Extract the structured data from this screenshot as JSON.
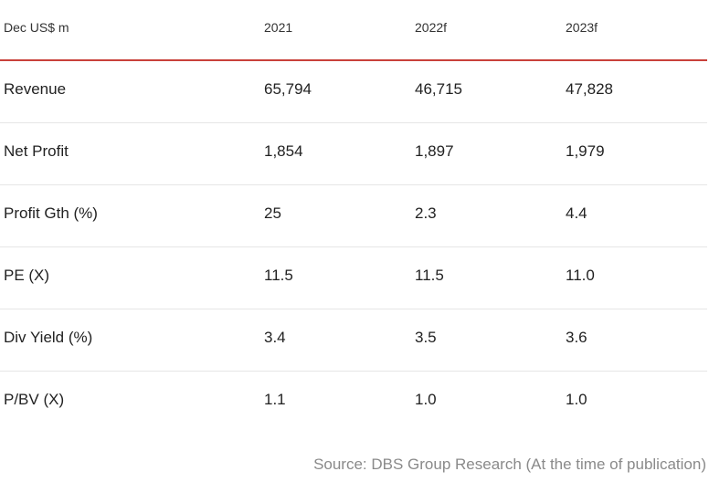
{
  "table": {
    "headers": [
      "Dec US$ m",
      "2021",
      "2022f",
      "2023f"
    ],
    "rows": [
      [
        "Revenue",
        "65,794",
        "46,715",
        "47,828"
      ],
      [
        "Net Profit",
        "1,854",
        "1,897",
        "1,979"
      ],
      [
        "Profit Gth (%)",
        "25",
        "2.3",
        "4.4"
      ],
      [
        "PE (X)",
        "11.5",
        "11.5",
        "11.0"
      ],
      [
        "Div Yield (%)",
        "3.4",
        "3.5",
        "3.6"
      ],
      [
        "P/BV (X)",
        "1.1",
        "1.0",
        "1.0"
      ]
    ]
  },
  "source": "Source: DBS Group Research (At the time of publication)",
  "colors": {
    "header_rule": "#c9413a",
    "row_divider": "#e6e6e6",
    "source_text": "#8a8a8a"
  }
}
